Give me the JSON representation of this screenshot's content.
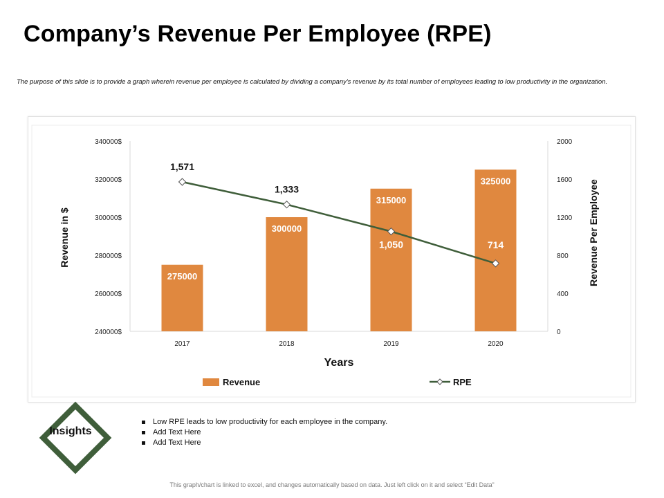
{
  "page": {
    "title": "Company’s Revenue Per Employee (RPE)",
    "subtitle": "The purpose of this slide is to provide a graph wherein revenue per employee is calculated by dividing a company's revenue by its total number of employees leading to low productivity in the organization.",
    "footer": "This graph/chart is linked to excel, and changes automatically based on data. Just left click on it and select “Edit Data”"
  },
  "insights": {
    "label": "Insights",
    "bullets": [
      "Low RPE leads to low productivity for each employee in the company.",
      "Add Text Here",
      "Add Text Here"
    ]
  },
  "colors": {
    "bar": "#e0883f",
    "line": "#3f5e3a",
    "diamond_border": "#3f5e3a"
  },
  "chart_data": {
    "type": "bar",
    "categories": [
      "2017",
      "2018",
      "2019",
      "2020"
    ],
    "series": [
      {
        "name": "Revenue",
        "type": "bar",
        "axis": "left",
        "values": [
          275000,
          300000,
          315000,
          325000
        ],
        "labels": [
          "275000",
          "300000",
          "315000",
          "325000"
        ]
      },
      {
        "name": "RPE",
        "type": "line",
        "axis": "right",
        "values": [
          1571,
          1333,
          1050,
          714
        ],
        "labels": [
          "1,571",
          "1,333",
          "1,050",
          "714"
        ]
      }
    ],
    "xlabel": "Years",
    "ylabel": "Revenue in $",
    "y2label": "Revenue Per Employee",
    "ylim": [
      240000,
      340000
    ],
    "y2lim": [
      0,
      2000
    ],
    "yticks": [
      "240000$",
      "260000$",
      "280000$",
      "300000$",
      "320000$",
      "340000$"
    ],
    "y2ticks": [
      "0",
      "400",
      "800",
      "1200",
      "1600",
      "2000"
    ],
    "legend": [
      "Revenue",
      "RPE"
    ],
    "legend_position": "bottom"
  }
}
